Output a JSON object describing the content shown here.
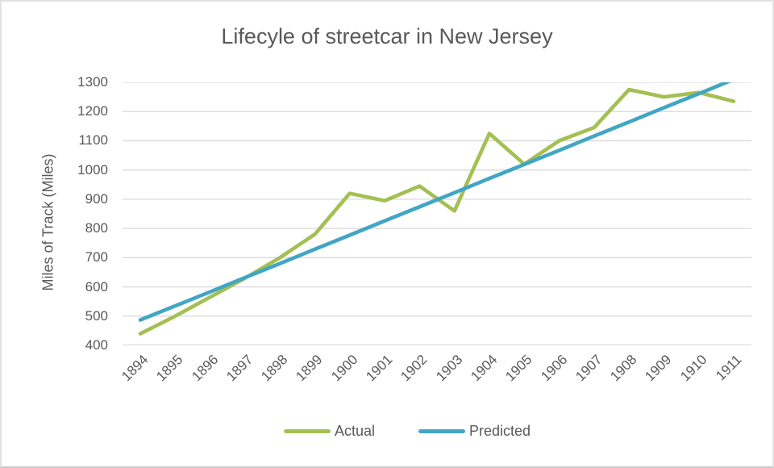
{
  "window": {
    "background": "#ffffff",
    "border_color": "#e2e2e2"
  },
  "colors": {
    "actual_line": "#a4bf52",
    "predicted_line": "#41a6c4",
    "gridline": "#d9d9d9",
    "text": "#595959"
  },
  "chart_data": {
    "type": "line",
    "title": "Lifecyle of streetcar in New Jersey",
    "xlabel": "",
    "ylabel": "Miles of Track (Miles)",
    "categories": [
      "1894",
      "1895",
      "1896",
      "1897",
      "1898",
      "1899",
      "1900",
      "1901",
      "1902",
      "1903",
      "1904",
      "1905",
      "1906",
      "1907",
      "1908",
      "1909",
      "1910",
      "1911"
    ],
    "series": [
      {
        "name": "Actual",
        "color": "#a4bf52",
        "values": [
          440,
          500,
          565,
          630,
          700,
          780,
          920,
          895,
          945,
          860,
          1125,
          1020,
          1100,
          1145,
          1275,
          1250,
          1265,
          1235
        ]
      },
      {
        "name": "Predicted",
        "color": "#41a6c4",
        "values": [
          487,
          535,
          583,
          632,
          680,
          729,
          777,
          826,
          874,
          922,
          971,
          1019,
          1067,
          1116,
          1164,
          1213,
          1261,
          1310
        ],
        "note": "straight trend line, visually clipped at axis max 1300"
      }
    ],
    "ylim": [
      400,
      1300
    ],
    "ytick_step": 100,
    "grid": true,
    "legend_position": "bottom",
    "x_tick_rotation_deg": 45
  }
}
